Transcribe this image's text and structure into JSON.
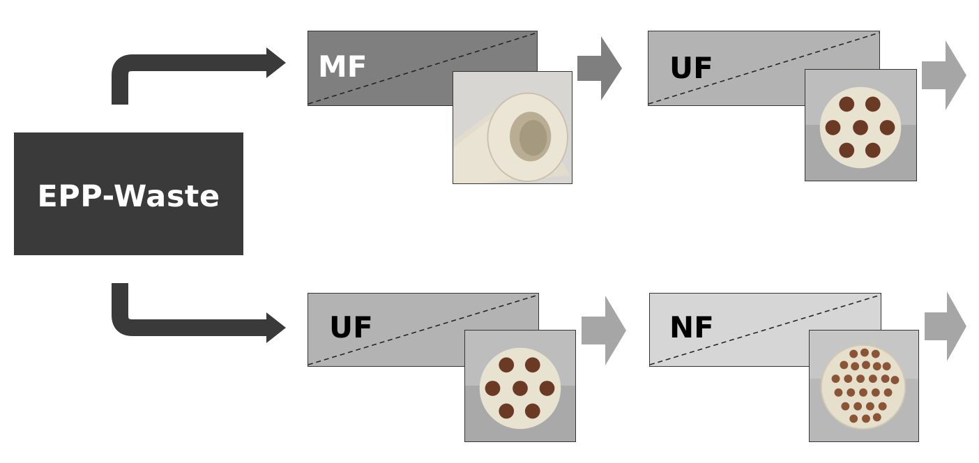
{
  "source": {
    "label": "EPP-Waste"
  },
  "stages": [
    {
      "id": "mf-top",
      "label": "MF",
      "membrane": "single-channel-tube-membrane"
    },
    {
      "id": "uf-top",
      "label": "UF",
      "membrane": "seven-channel-membrane"
    },
    {
      "id": "uf-bottom",
      "label": "UF",
      "membrane": "seven-channel-membrane"
    },
    {
      "id": "nf-bottom",
      "label": "NF",
      "membrane": "nineteen-channel-membrane"
    }
  ],
  "colors": {
    "source_fill": "#3b3a3a",
    "connector": "#3b3a3a",
    "mf_fill": "#7f7f7f",
    "uf_fill": "#b3b3b3",
    "nf_fill": "#d6d6d6",
    "mf_label": "#ffffff",
    "dark_label": "#000000",
    "arrow_dark": "#7f7f7f",
    "arrow_light": "#a6a6a6",
    "ceramic": "#e6dfcf",
    "channel": "#6b3a25",
    "photo_bg": "#bdbdbd"
  }
}
